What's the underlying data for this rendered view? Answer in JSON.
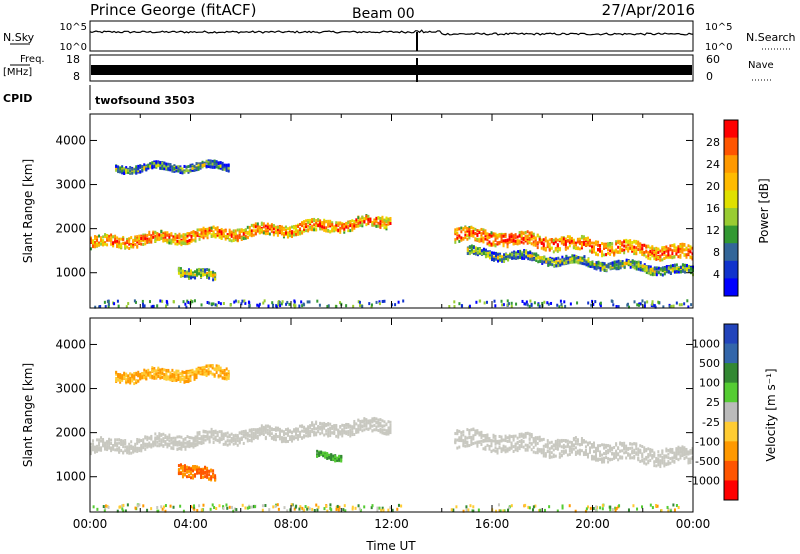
{
  "header": {
    "station": "Prince George (fitACF)",
    "beam": "Beam 00",
    "date": "27/Apr/2016"
  },
  "top_panel": {
    "left_label": "N.Sky",
    "left_ticks": [
      "10^5",
      "10^0"
    ],
    "right_label": "N.Search",
    "right_ticks": [
      "10^5",
      "10^0"
    ]
  },
  "freq_panel": {
    "left_label_line1": "Freq.",
    "left_label_line2": "[MHz]",
    "left_ticks": [
      "18",
      "8"
    ],
    "right_label": "Nave",
    "right_ticks": [
      "60",
      "0"
    ]
  },
  "cpid": {
    "label": "CPID",
    "value": "twofsound 3503"
  },
  "chart_data": [
    {
      "type": "heatmap",
      "name": "power",
      "ylabel": "Slant Range [km]",
      "y_ticks": [
        "4000",
        "3000",
        "2000",
        "1000"
      ],
      "ylim": [
        200,
        4600
      ],
      "xlim": [
        0,
        24
      ],
      "colorbar_label": "Power [dB]",
      "colorbar_ticks": [
        "28",
        "24",
        "20",
        "16",
        "12",
        "8",
        "4"
      ],
      "colorbar_colors": [
        "#ff0000",
        "#ff5500",
        "#ff9900",
        "#ffbb00",
        "#e0e000",
        "#99cc33",
        "#339933",
        "#336699",
        "#1133cc",
        "#0000ff"
      ],
      "bands": [
        {
          "t0": 0.0,
          "t1": 12.0,
          "r_start": 1700,
          "r_end": 2200,
          "width": 250,
          "level": 0.85
        },
        {
          "t0": 14.5,
          "t1": 24.0,
          "r_start": 1900,
          "r_end": 1450,
          "width": 300,
          "level": 0.9
        },
        {
          "t0": 15.0,
          "t1": 24.0,
          "r_start": 1500,
          "r_end": 1050,
          "width": 180,
          "level": 0.5
        },
        {
          "t0": 1.0,
          "t1": 5.5,
          "r_start": 3400,
          "r_end": 3450,
          "width": 150,
          "level": 0.45
        },
        {
          "t0": 3.5,
          "t1": 5.0,
          "r_start": 1100,
          "r_end": 900,
          "width": 200,
          "level": 0.55
        }
      ]
    },
    {
      "type": "heatmap",
      "name": "velocity",
      "ylabel": "Slant Range [km]",
      "y_ticks": [
        "4000",
        "3000",
        "2000",
        "1000"
      ],
      "ylim": [
        200,
        4600
      ],
      "xlim": [
        0,
        24
      ],
      "colorbar_label": "Velocity [m s⁻¹]",
      "colorbar_ticks": [
        "1000",
        "500",
        "100",
        "25",
        "-25",
        "-100",
        "-500",
        "-1000"
      ],
      "colorbar_colors": [
        "#2244bb",
        "#3366aa",
        "#338833",
        "#55cc33",
        "#bbbbbb",
        "#ffcc33",
        "#ff9900",
        "#ff5500",
        "#ff0000"
      ],
      "regions": [
        {
          "t0": 0.0,
          "t1": 12.0,
          "r_start": 1700,
          "r_end": 2200,
          "width": 300,
          "v": 0
        },
        {
          "t0": 14.5,
          "t1": 24.0,
          "r_start": 1900,
          "r_end": 1450,
          "width": 400,
          "v": 0
        },
        {
          "t0": 1.0,
          "t1": 5.5,
          "r_start": 3300,
          "r_end": 3400,
          "width": 250,
          "v": -100
        },
        {
          "t0": 3.5,
          "t1": 5.0,
          "r_start": 1250,
          "r_end": 1000,
          "width": 280,
          "v": -500
        },
        {
          "t0": 9.0,
          "t1": 10.0,
          "r_start": 1500,
          "r_end": 1500,
          "width": 120,
          "v": 100
        }
      ]
    }
  ],
  "x_axis": {
    "ticks": [
      "00:00",
      "04:00",
      "08:00",
      "12:00",
      "16:00",
      "20:00",
      "00:00"
    ],
    "label": "Time UT"
  }
}
